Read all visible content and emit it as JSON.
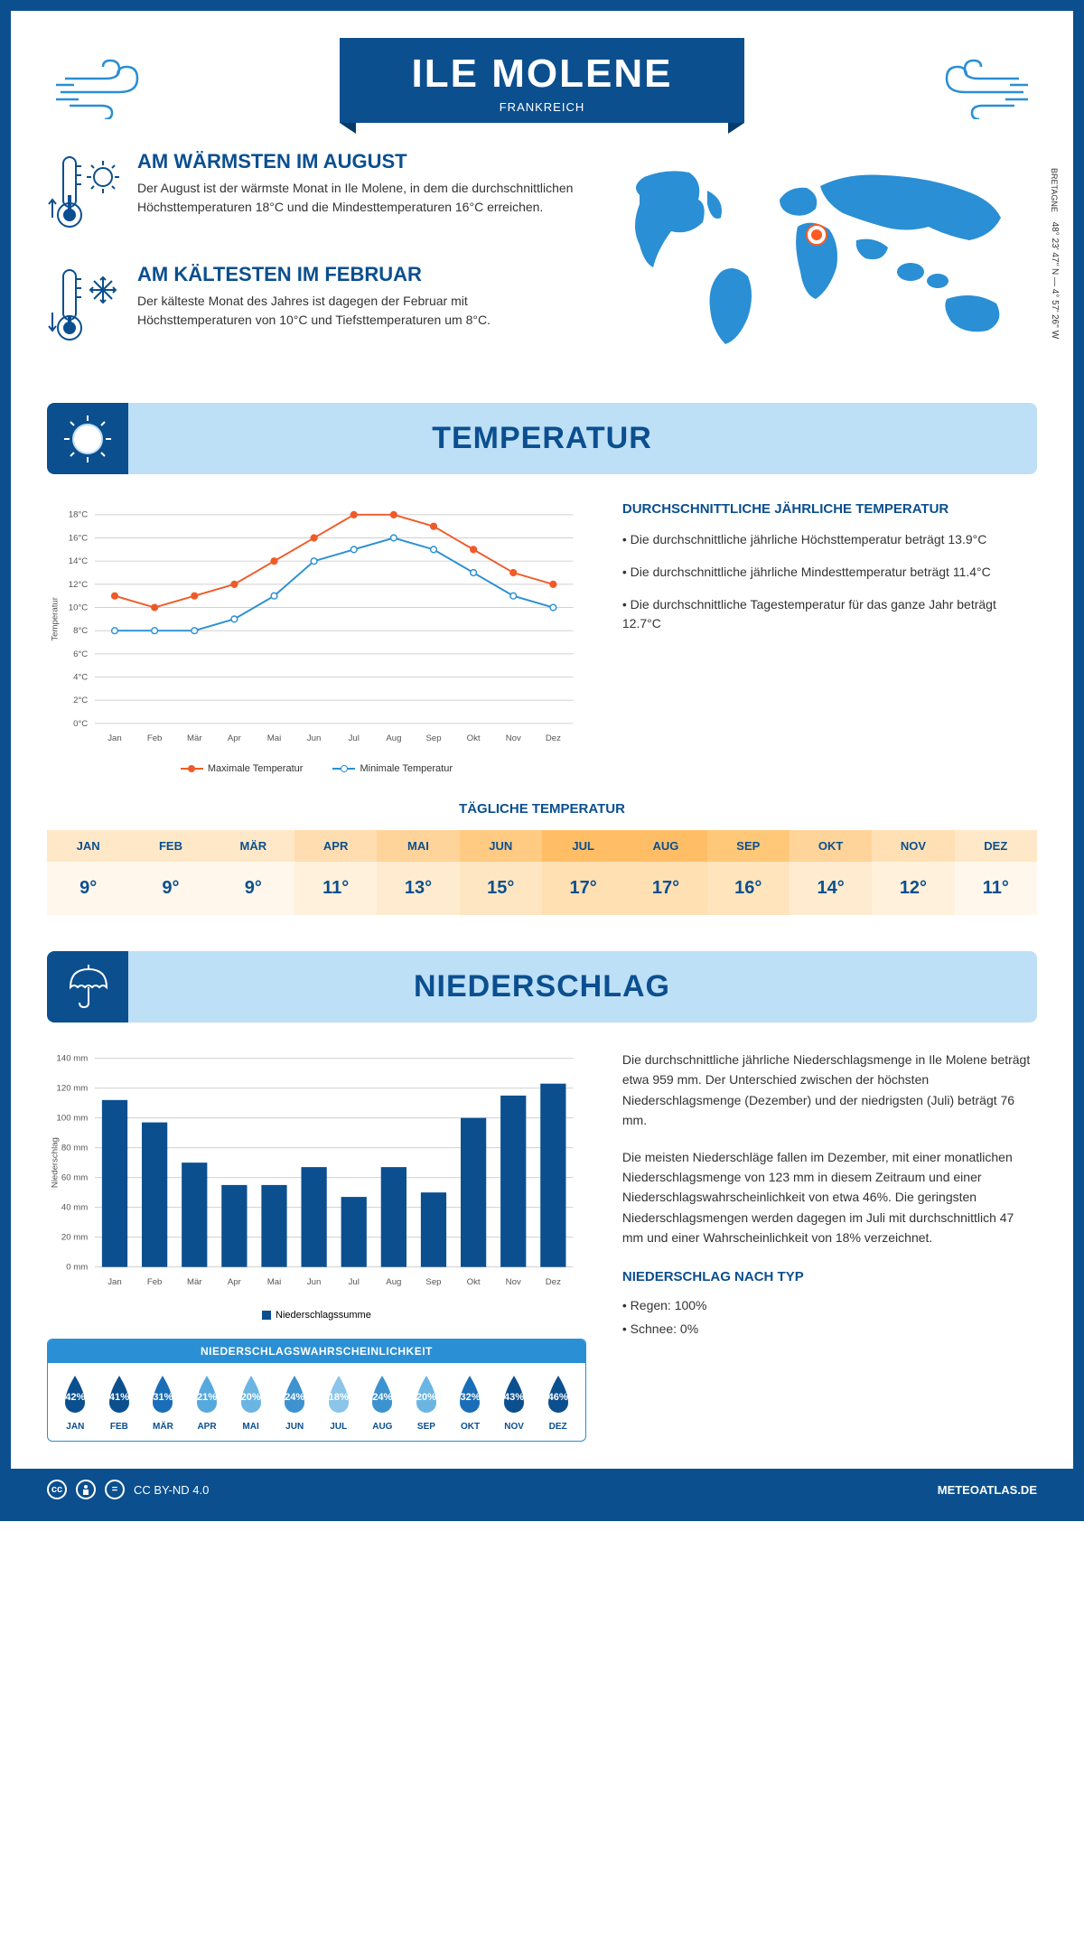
{
  "header": {
    "title": "ILE MOLENE",
    "subtitle": "FRANKREICH"
  },
  "coords": {
    "text": "48° 23' 47'' N — 4° 57' 26'' W",
    "region": "BRETAGNE"
  },
  "warmest": {
    "title": "AM WÄRMSTEN IM AUGUST",
    "text": "Der August ist der wärmste Monat in Ile Molene, in dem die durchschnittlichen Höchsttemperaturen 18°C und die Mindesttemperaturen 16°C erreichen."
  },
  "coldest": {
    "title": "AM KÄLTESTEN IM FEBRUAR",
    "text": "Der kälteste Monat des Jahres ist dagegen der Februar mit Höchsttemperaturen von 10°C und Tiefsttemperaturen um 8°C."
  },
  "temperature": {
    "section_title": "TEMPERATUR",
    "text_title": "DURCHSCHNITTLICHE JÄHRLICHE TEMPERATUR",
    "bullets": [
      "• Die durchschnittliche jährliche Höchsttemperatur beträgt 13.9°C",
      "• Die durchschnittliche jährliche Mindesttemperatur beträgt 11.4°C",
      "• Die durchschnittliche Tagestemperatur für das ganze Jahr beträgt 12.7°C"
    ],
    "chart": {
      "type": "line",
      "months": [
        "Jan",
        "Feb",
        "Mär",
        "Apr",
        "Mai",
        "Jun",
        "Jul",
        "Aug",
        "Sep",
        "Okt",
        "Nov",
        "Dez"
      ],
      "max_series": {
        "label": "Maximale Temperatur",
        "color": "#f05a28",
        "values": [
          11,
          10,
          11,
          12,
          14,
          16,
          18,
          18,
          17,
          15,
          13,
          12
        ]
      },
      "min_series": {
        "label": "Minimale Temperatur",
        "color": "#2a8fd4",
        "values": [
          8,
          8,
          8,
          9,
          11,
          14,
          15,
          16,
          15,
          13,
          11,
          10
        ]
      },
      "y_axis": {
        "label": "Temperatur",
        "min": 0,
        "max": 18,
        "step": 2,
        "unit": "°C"
      },
      "grid_color": "#d0d0d0"
    },
    "daily_title": "TÄGLICHE TEMPERATUR",
    "daily": {
      "months": [
        "JAN",
        "FEB",
        "MÄR",
        "APR",
        "MAI",
        "JUN",
        "JUL",
        "AUG",
        "SEP",
        "OKT",
        "NOV",
        "DEZ"
      ],
      "temps": [
        "9°",
        "9°",
        "9°",
        "11°",
        "13°",
        "15°",
        "17°",
        "17°",
        "16°",
        "14°",
        "12°",
        "11°"
      ],
      "header_colors": [
        "#ffe8c7",
        "#ffe8c7",
        "#ffe8c7",
        "#ffddb0",
        "#ffd49a",
        "#ffca82",
        "#ffbe66",
        "#ffbe66",
        "#ffc878",
        "#ffd49a",
        "#ffe0b5",
        "#ffe8c7"
      ],
      "cell_colors": [
        "#fff7eb",
        "#fff7eb",
        "#fff7eb",
        "#fff1dc",
        "#ffecd0",
        "#ffe6c2",
        "#ffe0b3",
        "#ffe0b3",
        "#ffe4bc",
        "#ffecd0",
        "#fff1dc",
        "#fff7eb"
      ]
    }
  },
  "precipitation": {
    "section_title": "NIEDERSCHLAG",
    "text1": "Die durchschnittliche jährliche Niederschlagsmenge in Ile Molene beträgt etwa 959 mm. Der Unterschied zwischen der höchsten Niederschlagsmenge (Dezember) und der niedrigsten (Juli) beträgt 76 mm.",
    "text2": "Die meisten Niederschläge fallen im Dezember, mit einer monatlichen Niederschlagsmenge von 123 mm in diesem Zeitraum und einer Niederschlagswahrscheinlichkeit von etwa 46%. Die geringsten Niederschlagsmengen werden dagegen im Juli mit durchschnittlich 47 mm und einer Wahrscheinlichkeit von 18% verzeichnet.",
    "type_title": "NIEDERSCHLAG NACH TYP",
    "type_bullets": [
      "• Regen: 100%",
      "• Schnee: 0%"
    ],
    "chart": {
      "type": "bar",
      "months": [
        "Jan",
        "Feb",
        "Mär",
        "Apr",
        "Mai",
        "Jun",
        "Jul",
        "Aug",
        "Sep",
        "Okt",
        "Nov",
        "Dez"
      ],
      "values": [
        112,
        97,
        70,
        55,
        55,
        67,
        47,
        67,
        50,
        100,
        115,
        123
      ],
      "bar_color": "#0b4f8f",
      "y_axis": {
        "label": "Niederschlag",
        "min": 0,
        "max": 140,
        "step": 20,
        "unit": " mm"
      },
      "legend": "Niederschlagssumme",
      "grid_color": "#d0d0d0"
    },
    "probability": {
      "title": "NIEDERSCHLAGSWAHRSCHEINLICHKEIT",
      "months": [
        "JAN",
        "FEB",
        "MÄR",
        "APR",
        "MAI",
        "JUN",
        "JUL",
        "AUG",
        "SEP",
        "OKT",
        "NOV",
        "DEZ"
      ],
      "percents": [
        "42%",
        "41%",
        "31%",
        "21%",
        "20%",
        "24%",
        "18%",
        "24%",
        "20%",
        "32%",
        "43%",
        "46%"
      ],
      "colors": [
        "#0b4f8f",
        "#0b4f8f",
        "#1a6eb8",
        "#57a9dd",
        "#6bb5e3",
        "#3d92d0",
        "#8bc5e9",
        "#3d92d0",
        "#6bb5e3",
        "#1a6eb8",
        "#0b4f8f",
        "#0b4f8f"
      ]
    }
  },
  "footer": {
    "license": "CC BY-ND 4.0",
    "brand": "METEOATLAS.DE"
  }
}
